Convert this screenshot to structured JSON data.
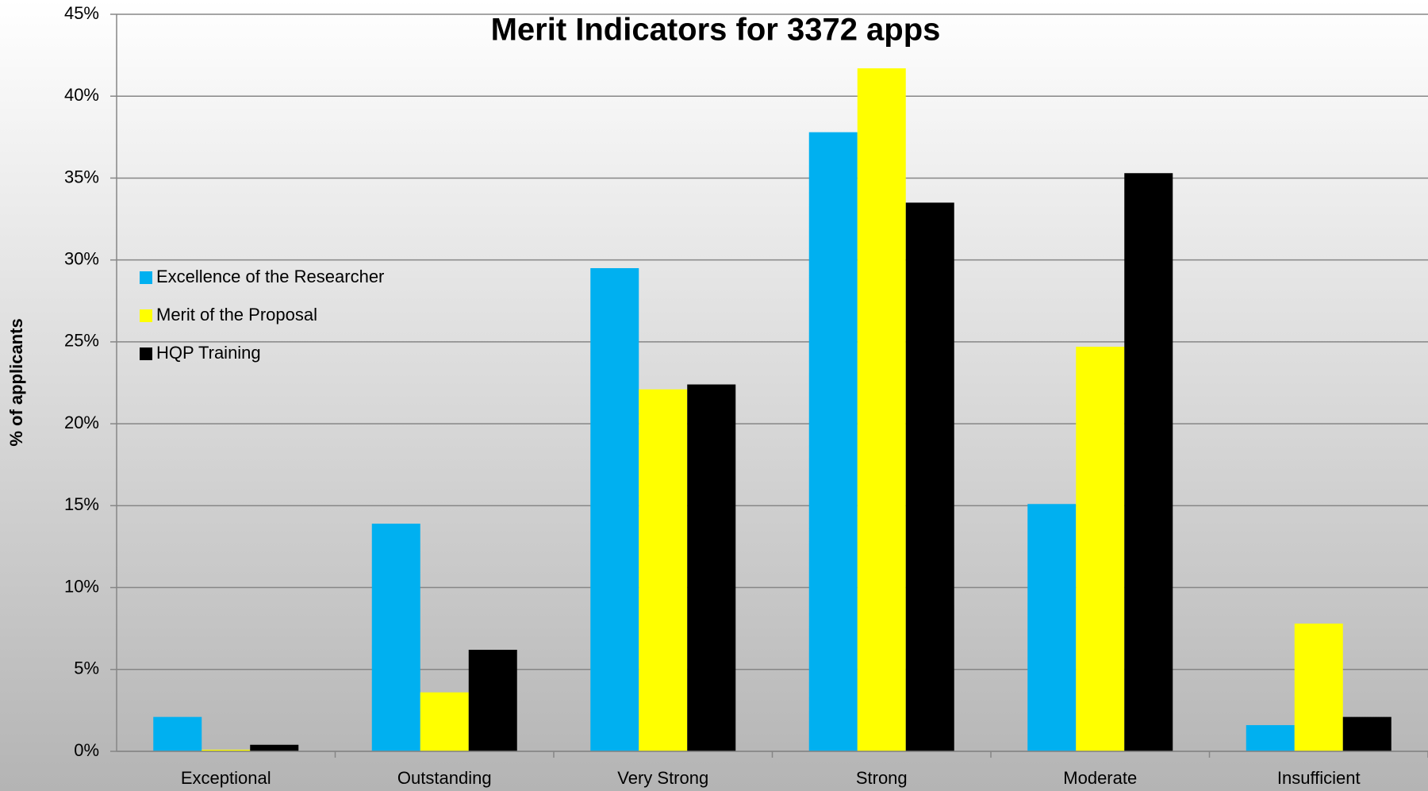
{
  "chart_data": {
    "type": "bar",
    "title": "Merit Indicators for 3372 apps",
    "y_label": "% of applicants",
    "categories": [
      "Exceptional",
      "Outstanding",
      "Very Strong",
      "Strong",
      "Moderate",
      "Insufficient"
    ],
    "series": [
      {
        "name": "Excellence of the Researcher",
        "color": "#00b0f0",
        "values": [
          2.1,
          13.9,
          29.5,
          37.8,
          15.1,
          1.6
        ]
      },
      {
        "name": "Merit of the Proposal",
        "color": "#ffff00",
        "values": [
          0.1,
          3.6,
          22.1,
          41.7,
          24.7,
          7.8
        ]
      },
      {
        "name": "HQP Training",
        "color": "#000000",
        "values": [
          0.4,
          6.2,
          22.4,
          33.5,
          35.3,
          2.1
        ]
      }
    ],
    "ylim": [
      0,
      45
    ],
    "yticks": [
      {
        "value": 0,
        "label": "0%"
      },
      {
        "value": 5,
        "label": "5%"
      },
      {
        "value": 10,
        "label": "10%"
      },
      {
        "value": 15,
        "label": "15%"
      },
      {
        "value": 20,
        "label": "20%"
      },
      {
        "value": 25,
        "label": "25%"
      },
      {
        "value": 30,
        "label": "30%"
      },
      {
        "value": 35,
        "label": "35%"
      },
      {
        "value": 40,
        "label": "40%"
      },
      {
        "value": 45,
        "label": "45%"
      }
    ],
    "grid": true,
    "legend_position": "left"
  }
}
